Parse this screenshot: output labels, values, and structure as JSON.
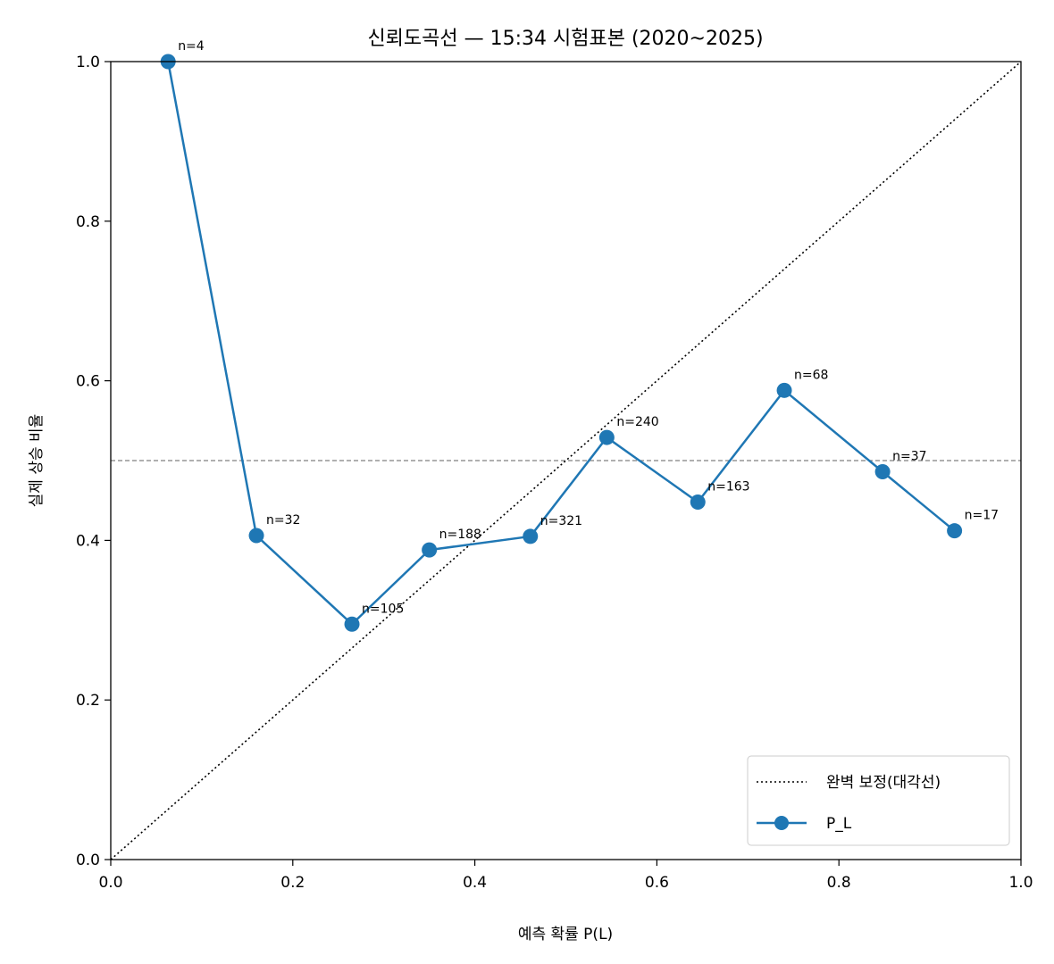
{
  "chart_data": {
    "type": "line",
    "title": "신뢰도곡선 — 15:34 시험표본 (2020~2025)",
    "xlabel": "예측 확률 P(L)",
    "ylabel": "실제 상승 비율",
    "xlim": [
      0,
      1
    ],
    "ylim": [
      0,
      1
    ],
    "xticks": [
      0.0,
      0.2,
      0.4,
      0.6,
      0.8,
      1.0
    ],
    "yticks": [
      0.0,
      0.2,
      0.4,
      0.6,
      0.8,
      1.0
    ],
    "xtick_labels": [
      "0.0",
      "0.2",
      "0.4",
      "0.6",
      "0.8",
      "1.0"
    ],
    "ytick_labels": [
      "0.0",
      "0.2",
      "0.4",
      "0.6",
      "0.8",
      "1.0"
    ],
    "grid": false,
    "reference_hline": 0.5,
    "legend_position": "bottom-right",
    "series": [
      {
        "name": "P_L",
        "color": "#1f77b4",
        "x": [
          0.063,
          0.16,
          0.265,
          0.35,
          0.461,
          0.545,
          0.645,
          0.74,
          0.848,
          0.927
        ],
        "y": [
          1.0,
          0.406,
          0.295,
          0.388,
          0.405,
          0.529,
          0.448,
          0.588,
          0.486,
          0.412
        ],
        "labels": [
          "n=4",
          "n=32",
          "n=105",
          "n=188",
          "n=321",
          "n=240",
          "n=163",
          "n=68",
          "n=37",
          "n=17"
        ]
      }
    ],
    "reference_line": {
      "name": "완벽 보정(대각선)",
      "color": "#000000",
      "from": [
        0,
        0
      ],
      "to": [
        1,
        1
      ]
    }
  }
}
